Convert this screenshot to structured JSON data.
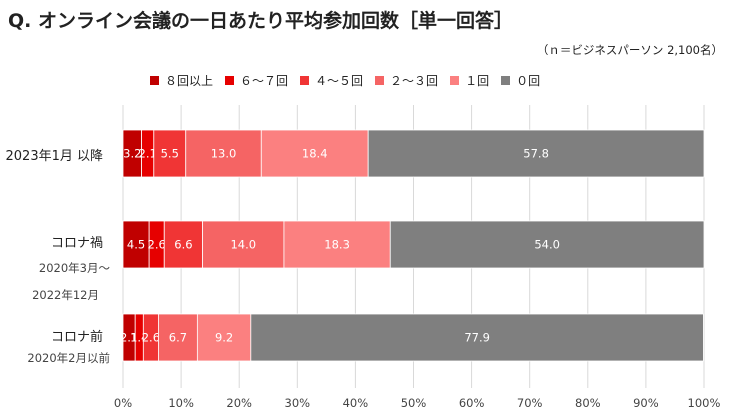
{
  "title": "Q. オンライン会議の一日あたり平均参加回数［単一回答］",
  "subtitle": "（ｎ＝ビジネスパーソン 2,100名）",
  "chart_data": {
    "type": "bar",
    "orientation": "horizontal",
    "stacked": true,
    "percent": true,
    "categories": [
      {
        "label": "2023年1月 以降",
        "sub": []
      },
      {
        "label": "コロナ禍",
        "sub": [
          "2020年3月〜",
          "2022年12月"
        ]
      },
      {
        "label": "コロナ前",
        "sub": [
          "2020年2月以前"
        ]
      }
    ],
    "series": [
      {
        "name": "８回以上",
        "color": "#c00000",
        "values": [
          3.2,
          4.5,
          2.1
        ]
      },
      {
        "name": "６〜７回",
        "color": "#e60000",
        "values": [
          2.1,
          2.6,
          1.4
        ]
      },
      {
        "name": "４〜５回",
        "color": "#f03535",
        "values": [
          5.5,
          6.6,
          2.6
        ]
      },
      {
        "name": "２〜３回",
        "color": "#f56464",
        "values": [
          13.0,
          14.0,
          6.7
        ]
      },
      {
        "name": "１回",
        "color": "#fb8080",
        "values": [
          18.4,
          18.3,
          9.2
        ]
      },
      {
        "name": "０回",
        "color": "#7f7f7f",
        "values": [
          57.8,
          54.0,
          77.9
        ]
      }
    ],
    "data_labels": [
      [
        "3.2",
        "2.1",
        "5.5",
        "13.0",
        "18.4",
        "57.8"
      ],
      [
        "4.5",
        "2.6",
        "6.6",
        "14.0",
        "18.3",
        "54.0"
      ],
      [
        "2.1",
        "1.4",
        "2.6",
        "6.7",
        "9.2",
        "77.9"
      ]
    ],
    "xlim": [
      0,
      100
    ],
    "xticks": [
      "0%",
      "10%",
      "20%",
      "30%",
      "40%",
      "50%",
      "60%",
      "70%",
      "80%",
      "90%",
      "100%"
    ],
    "grid": true,
    "legend_position": "top"
  }
}
